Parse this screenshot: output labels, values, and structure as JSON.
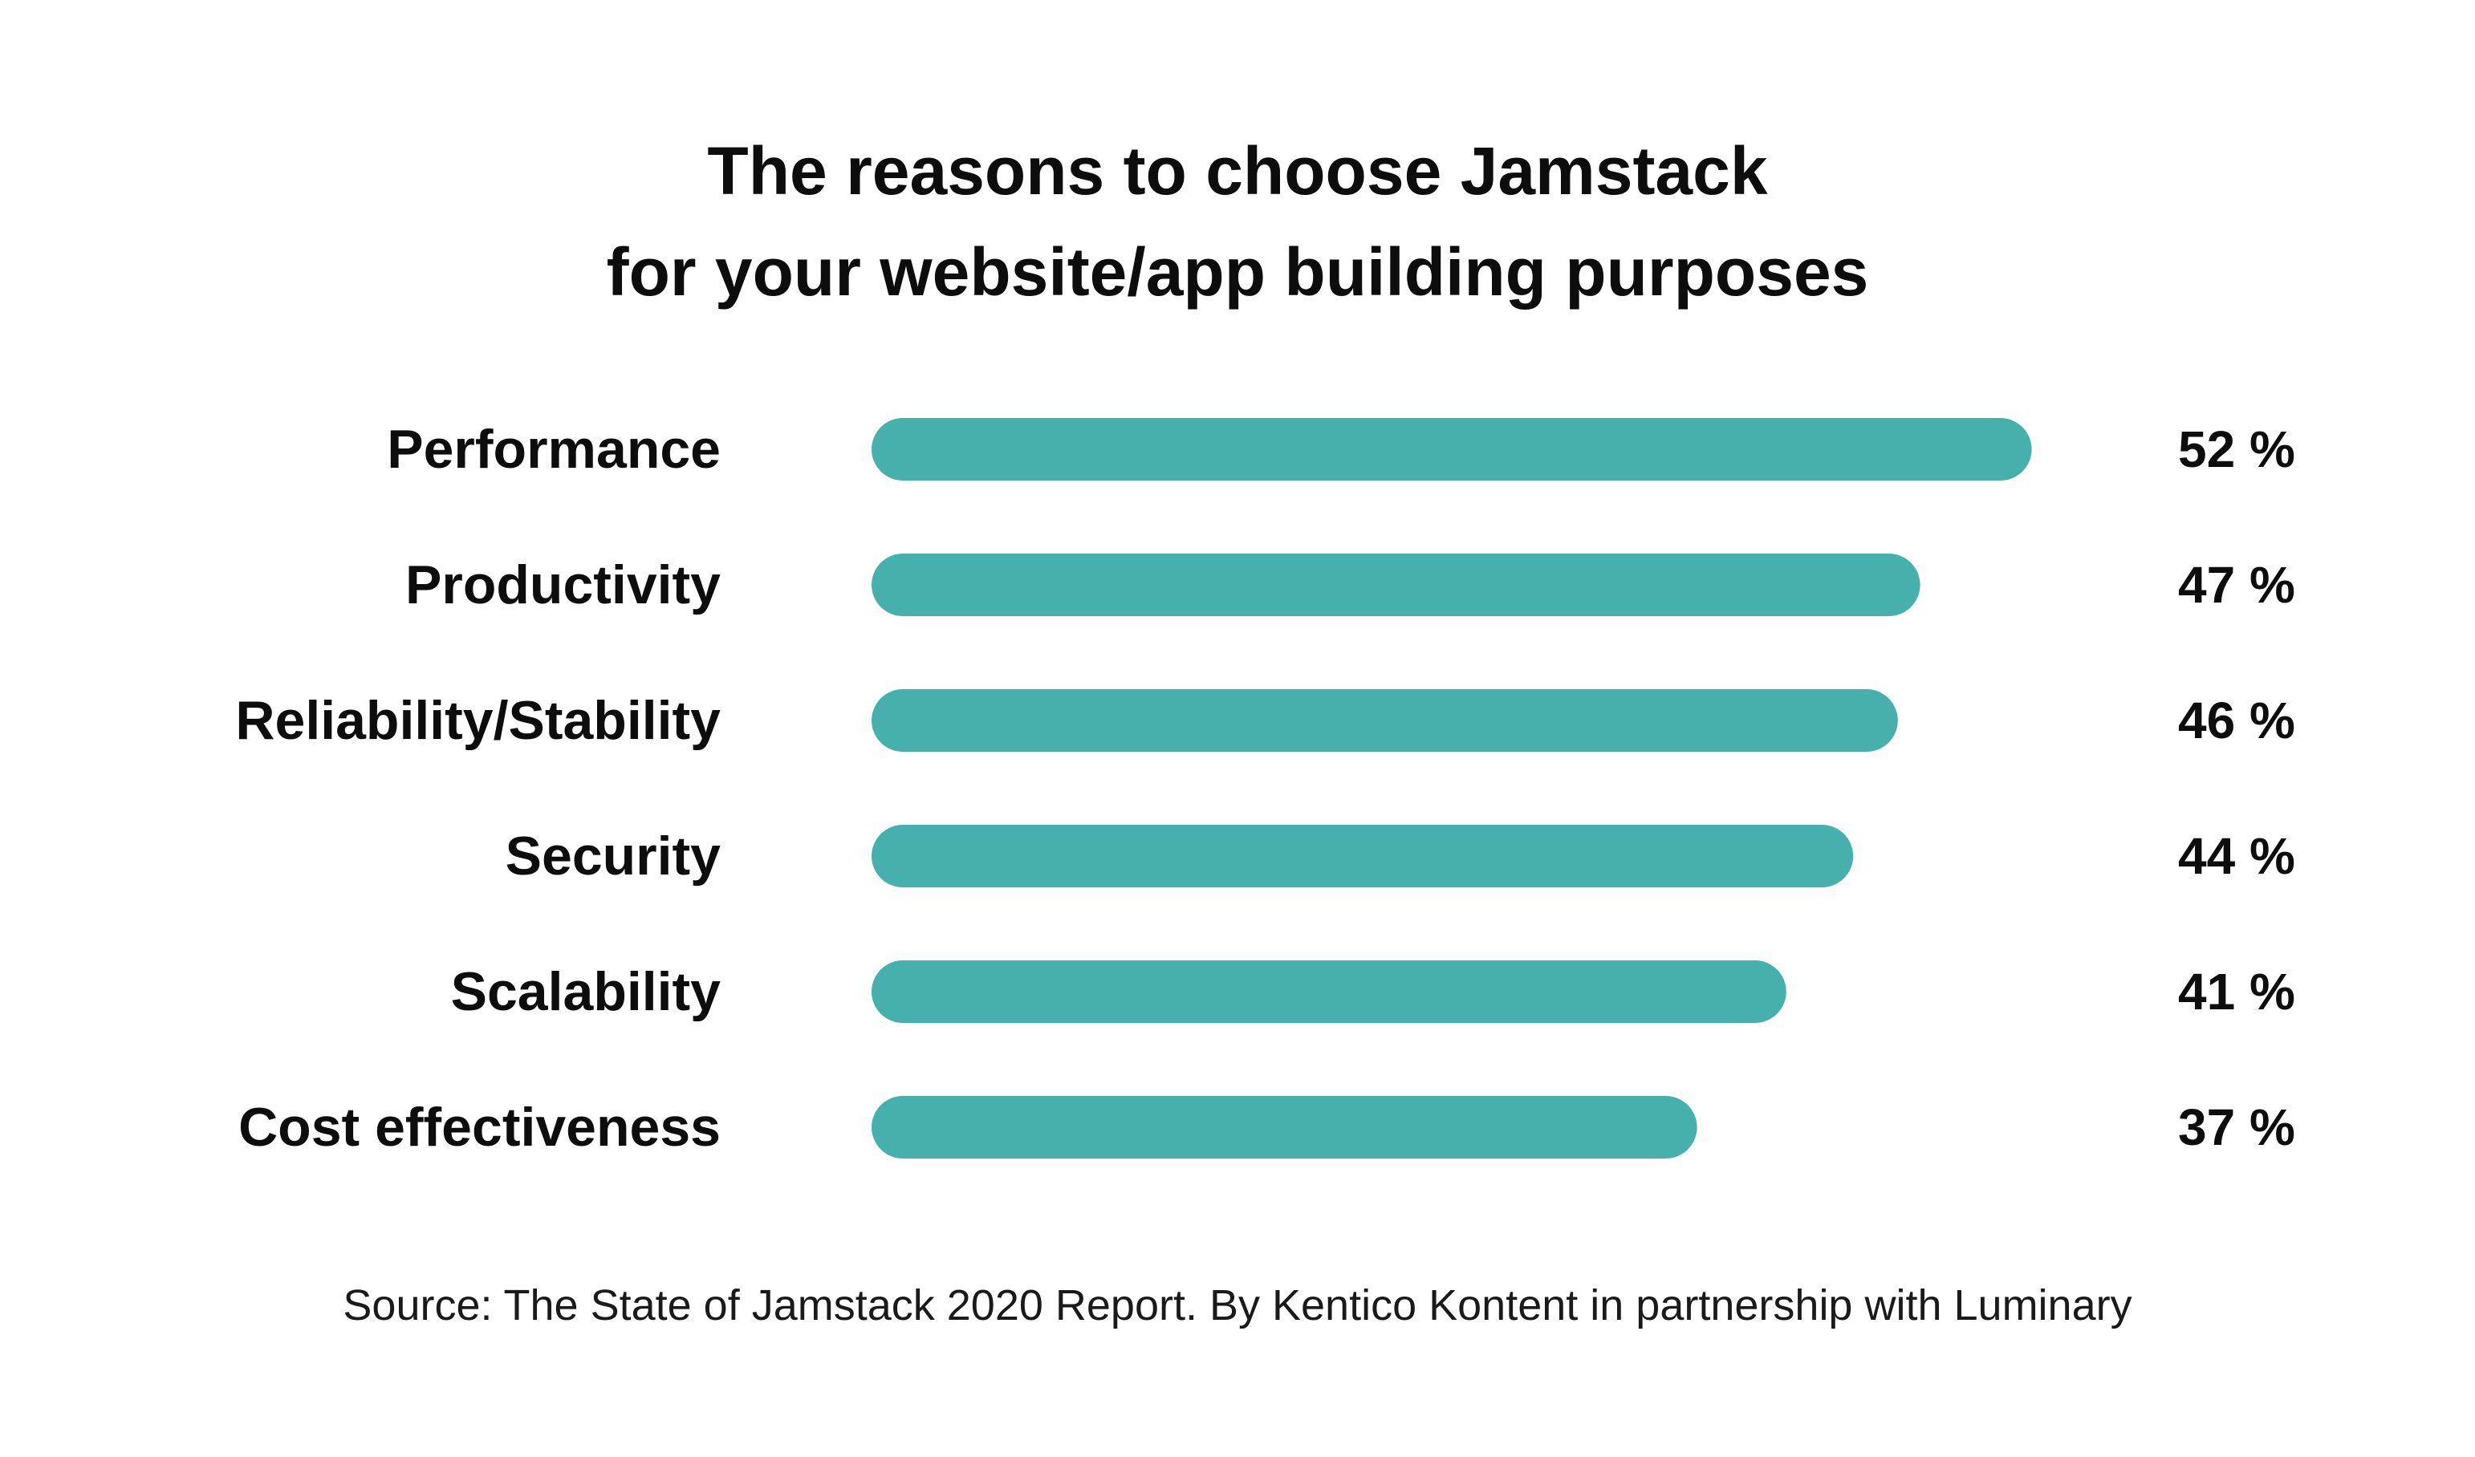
{
  "chart_data": {
    "type": "bar",
    "orientation": "horizontal",
    "title": "The reasons to choose Jamstack for your website/app building purposes",
    "title_lines": [
      "The reasons to choose Jamstack",
      "for your website/app building purposes"
    ],
    "categories": [
      "Performance",
      "Productivity",
      "Reliability/Stability",
      "Security",
      "Scalability",
      "Cost effectiveness"
    ],
    "values": [
      52,
      47,
      46,
      44,
      41,
      37
    ],
    "value_labels": [
      "52 %",
      "47 %",
      "46 %",
      "44 %",
      "41 %",
      "37 %"
    ],
    "bar_color": "#46b1ac",
    "grid": false,
    "xlabel": "",
    "ylabel": "",
    "source": "Source: The State of Jamstack 2020 Report. By Kentico Kontent in partnership with Luminary"
  }
}
